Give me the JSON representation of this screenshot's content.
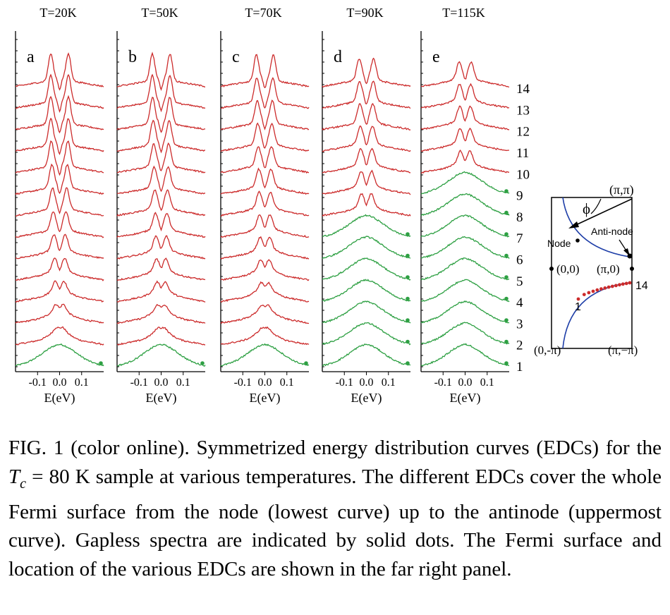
{
  "figure": {
    "panels": [
      {
        "letter": "a",
        "temperature": "T=20K"
      },
      {
        "letter": "b",
        "temperature": "T=50K"
      },
      {
        "letter": "c",
        "temperature": "T=70K"
      },
      {
        "letter": "d",
        "temperature": "T=90K"
      },
      {
        "letter": "e",
        "temperature": "T=115K"
      }
    ],
    "x_ticks": [
      "-0.1",
      "0.0",
      "0.1"
    ],
    "xlabel": "E(eV)",
    "curve_indices": [
      "1",
      "2",
      "3",
      "4",
      "5",
      "6",
      "7",
      "8",
      "9",
      "10",
      "11",
      "12",
      "13",
      "14"
    ],
    "colors": {
      "gapped": "#cc2b2b",
      "gapless": "#2ea043",
      "fermi_surface": "#1f3fa8",
      "point_on_fs": "#cc2b2b"
    },
    "fermi_panel": {
      "label_pi_pi": "(π,π)",
      "label_phi": "ϕ",
      "label_antinode": "Anti-node",
      "label_node": "Node",
      "label_00": "(0,0)",
      "label_pi0": "(π,0)",
      "label_14": "14",
      "label_1": "1",
      "label_0mpi": "(0,-π)",
      "label_pimpi": "(π,−π)"
    }
  },
  "chart_data": [
    {
      "type": "line",
      "panel": "a",
      "title": "T=20K",
      "xlabel": "E(eV)",
      "xlim": [
        -0.2,
        0.2
      ],
      "curves": 14,
      "gapless_curves": [
        1
      ],
      "gapped_curves": [
        2,
        3,
        4,
        5,
        6,
        7,
        8,
        9,
        10,
        11,
        12,
        13,
        14
      ]
    },
    {
      "type": "line",
      "panel": "b",
      "title": "T=50K",
      "xlabel": "E(eV)",
      "xlim": [
        -0.2,
        0.2
      ],
      "curves": 14,
      "gapless_curves": [
        1
      ],
      "gapped_curves": [
        2,
        3,
        4,
        5,
        6,
        7,
        8,
        9,
        10,
        11,
        12,
        13,
        14
      ]
    },
    {
      "type": "line",
      "panel": "c",
      "title": "T=70K",
      "xlabel": "E(eV)",
      "xlim": [
        -0.2,
        0.2
      ],
      "curves": 14,
      "gapless_curves": [
        1
      ],
      "gapped_curves": [
        2,
        3,
        4,
        5,
        6,
        7,
        8,
        9,
        10,
        11,
        12,
        13,
        14
      ]
    },
    {
      "type": "line",
      "panel": "d",
      "title": "T=90K",
      "xlabel": "E(eV)",
      "xlim": [
        -0.2,
        0.2
      ],
      "curves": 14,
      "gapless_curves": [
        1,
        2,
        3,
        4,
        5,
        6,
        7
      ],
      "gapped_curves": [
        8,
        9,
        10,
        11,
        12,
        13,
        14
      ]
    },
    {
      "type": "line",
      "panel": "e",
      "title": "T=115K",
      "xlabel": "E(eV)",
      "xlim": [
        -0.2,
        0.2
      ],
      "curves": 14,
      "gapless_curves": [
        1,
        2,
        3,
        4,
        5,
        6,
        7,
        8,
        9
      ],
      "gapped_curves": [
        10,
        11,
        12,
        13,
        14
      ]
    }
  ],
  "caption": {
    "part1": "FIG. 1 (color online).   Symmetrized energy distribution curves (EDCs) for the ",
    "tc_T": "T",
    "tc_sub": "c",
    "part2": " = 80 K sample at various temperatures. The different EDCs cover the whole Fermi surface from the node (lowest curve) up to the antinode (uppermost curve). Gapless spectra are indicated by solid dots. The Fermi surface and location of the various EDCs are shown in the far right panel."
  }
}
